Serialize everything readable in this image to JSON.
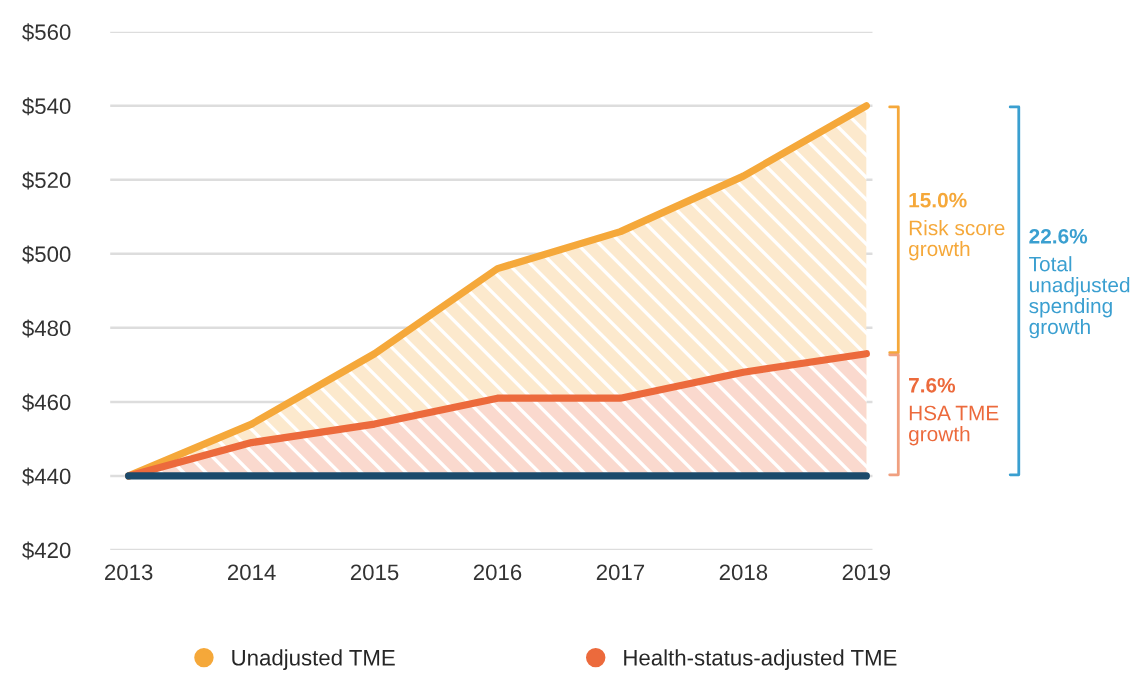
{
  "chart_data": {
    "type": "area",
    "x": [
      2013,
      2014,
      2015,
      2016,
      2017,
      2018,
      2019
    ],
    "series": [
      {
        "name": "Unadjusted TME",
        "color": "#f5a83a",
        "values": [
          440,
          454,
          473,
          496,
          506,
          521,
          540
        ]
      },
      {
        "name": "Health-status-adjusted TME",
        "color": "#ec6a3c",
        "values": [
          440,
          449,
          454,
          461,
          461,
          468,
          473
        ]
      },
      {
        "type": "line",
        "color": "#1b4a6b",
        "values": [
          440,
          440,
          440,
          440,
          440,
          440,
          440
        ]
      }
    ],
    "xlim": [
      2012.85,
      2019.05
    ],
    "xticks": [
      2013,
      2014,
      2015,
      2016,
      2017,
      2018,
      2019
    ],
    "ylim": [
      420,
      560
    ],
    "yticks": [
      {
        "value": 420,
        "label": "$420"
      },
      {
        "value": 440,
        "label": "$440"
      },
      {
        "value": 460,
        "label": "$460"
      },
      {
        "value": 480,
        "label": "$480"
      },
      {
        "value": 500,
        "label": "$500"
      },
      {
        "value": 520,
        "label": "$520"
      },
      {
        "value": 540,
        "label": "$540"
      },
      {
        "value": 560,
        "label": "$560"
      }
    ],
    "grid": "y",
    "legend": "bottom",
    "annotations": [
      "15.0%\nRisk score\ngrowth",
      "7.6%\nHSA TME\ngrowth",
      "22.6%\nTotal\nunadjusted\nspending\ngrowth"
    ]
  }
}
